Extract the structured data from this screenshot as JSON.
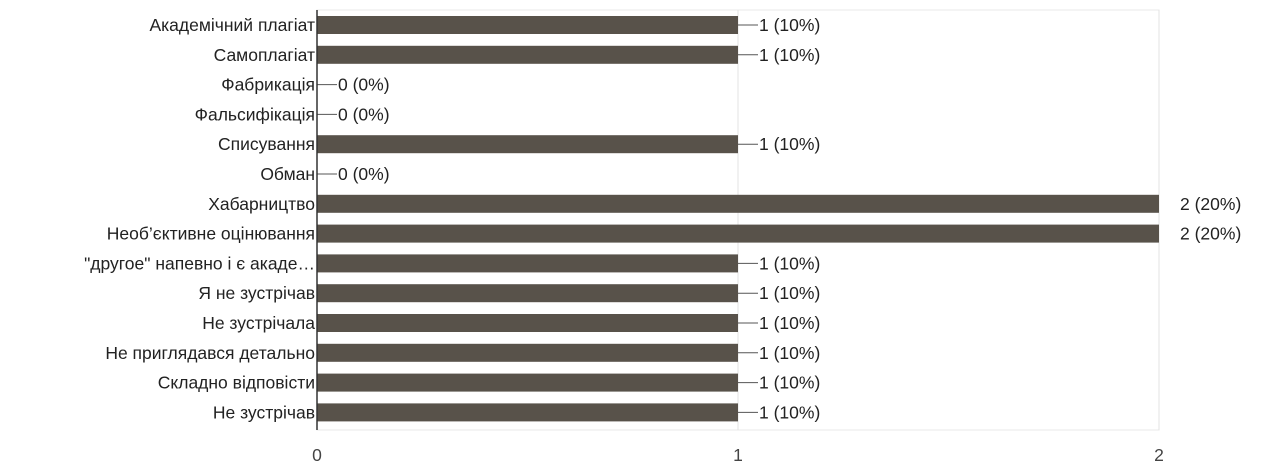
{
  "chart_data": {
    "type": "bar",
    "orientation": "horizontal",
    "categories": [
      "Академічний плагіат",
      "Самоплагіат",
      "Фабрикація",
      "Фальсифікація",
      "Списування",
      "Обман",
      "Хабарництво",
      "Необ’єктивне оцінювання",
      "\"другое\" напевно і є акаде…",
      "Я не зустрічав",
      "Не зустрічала",
      "Не приглядався детально",
      "Складно відповісти",
      "Не зустрічав"
    ],
    "values": [
      1,
      1,
      0,
      0,
      1,
      0,
      2,
      2,
      1,
      1,
      1,
      1,
      1,
      1
    ],
    "data_labels": [
      "1 (10%)",
      "1 (10%)",
      "0 (0%)",
      "0 (0%)",
      "1 (10%)",
      "0 (0%)",
      "2 (20%)",
      "2 (20%)",
      "1 (10%)",
      "1 (10%)",
      "1 (10%)",
      "1 (10%)",
      "1 (10%)",
      "1 (10%)"
    ],
    "x_ticks": [
      "0",
      "1",
      "2"
    ],
    "xlim": [
      0,
      2
    ],
    "grid": true,
    "colors": {
      "bar": "#58524a",
      "grid": "#e3e3e3",
      "axis": "#333333",
      "leader": "#555555"
    }
  }
}
